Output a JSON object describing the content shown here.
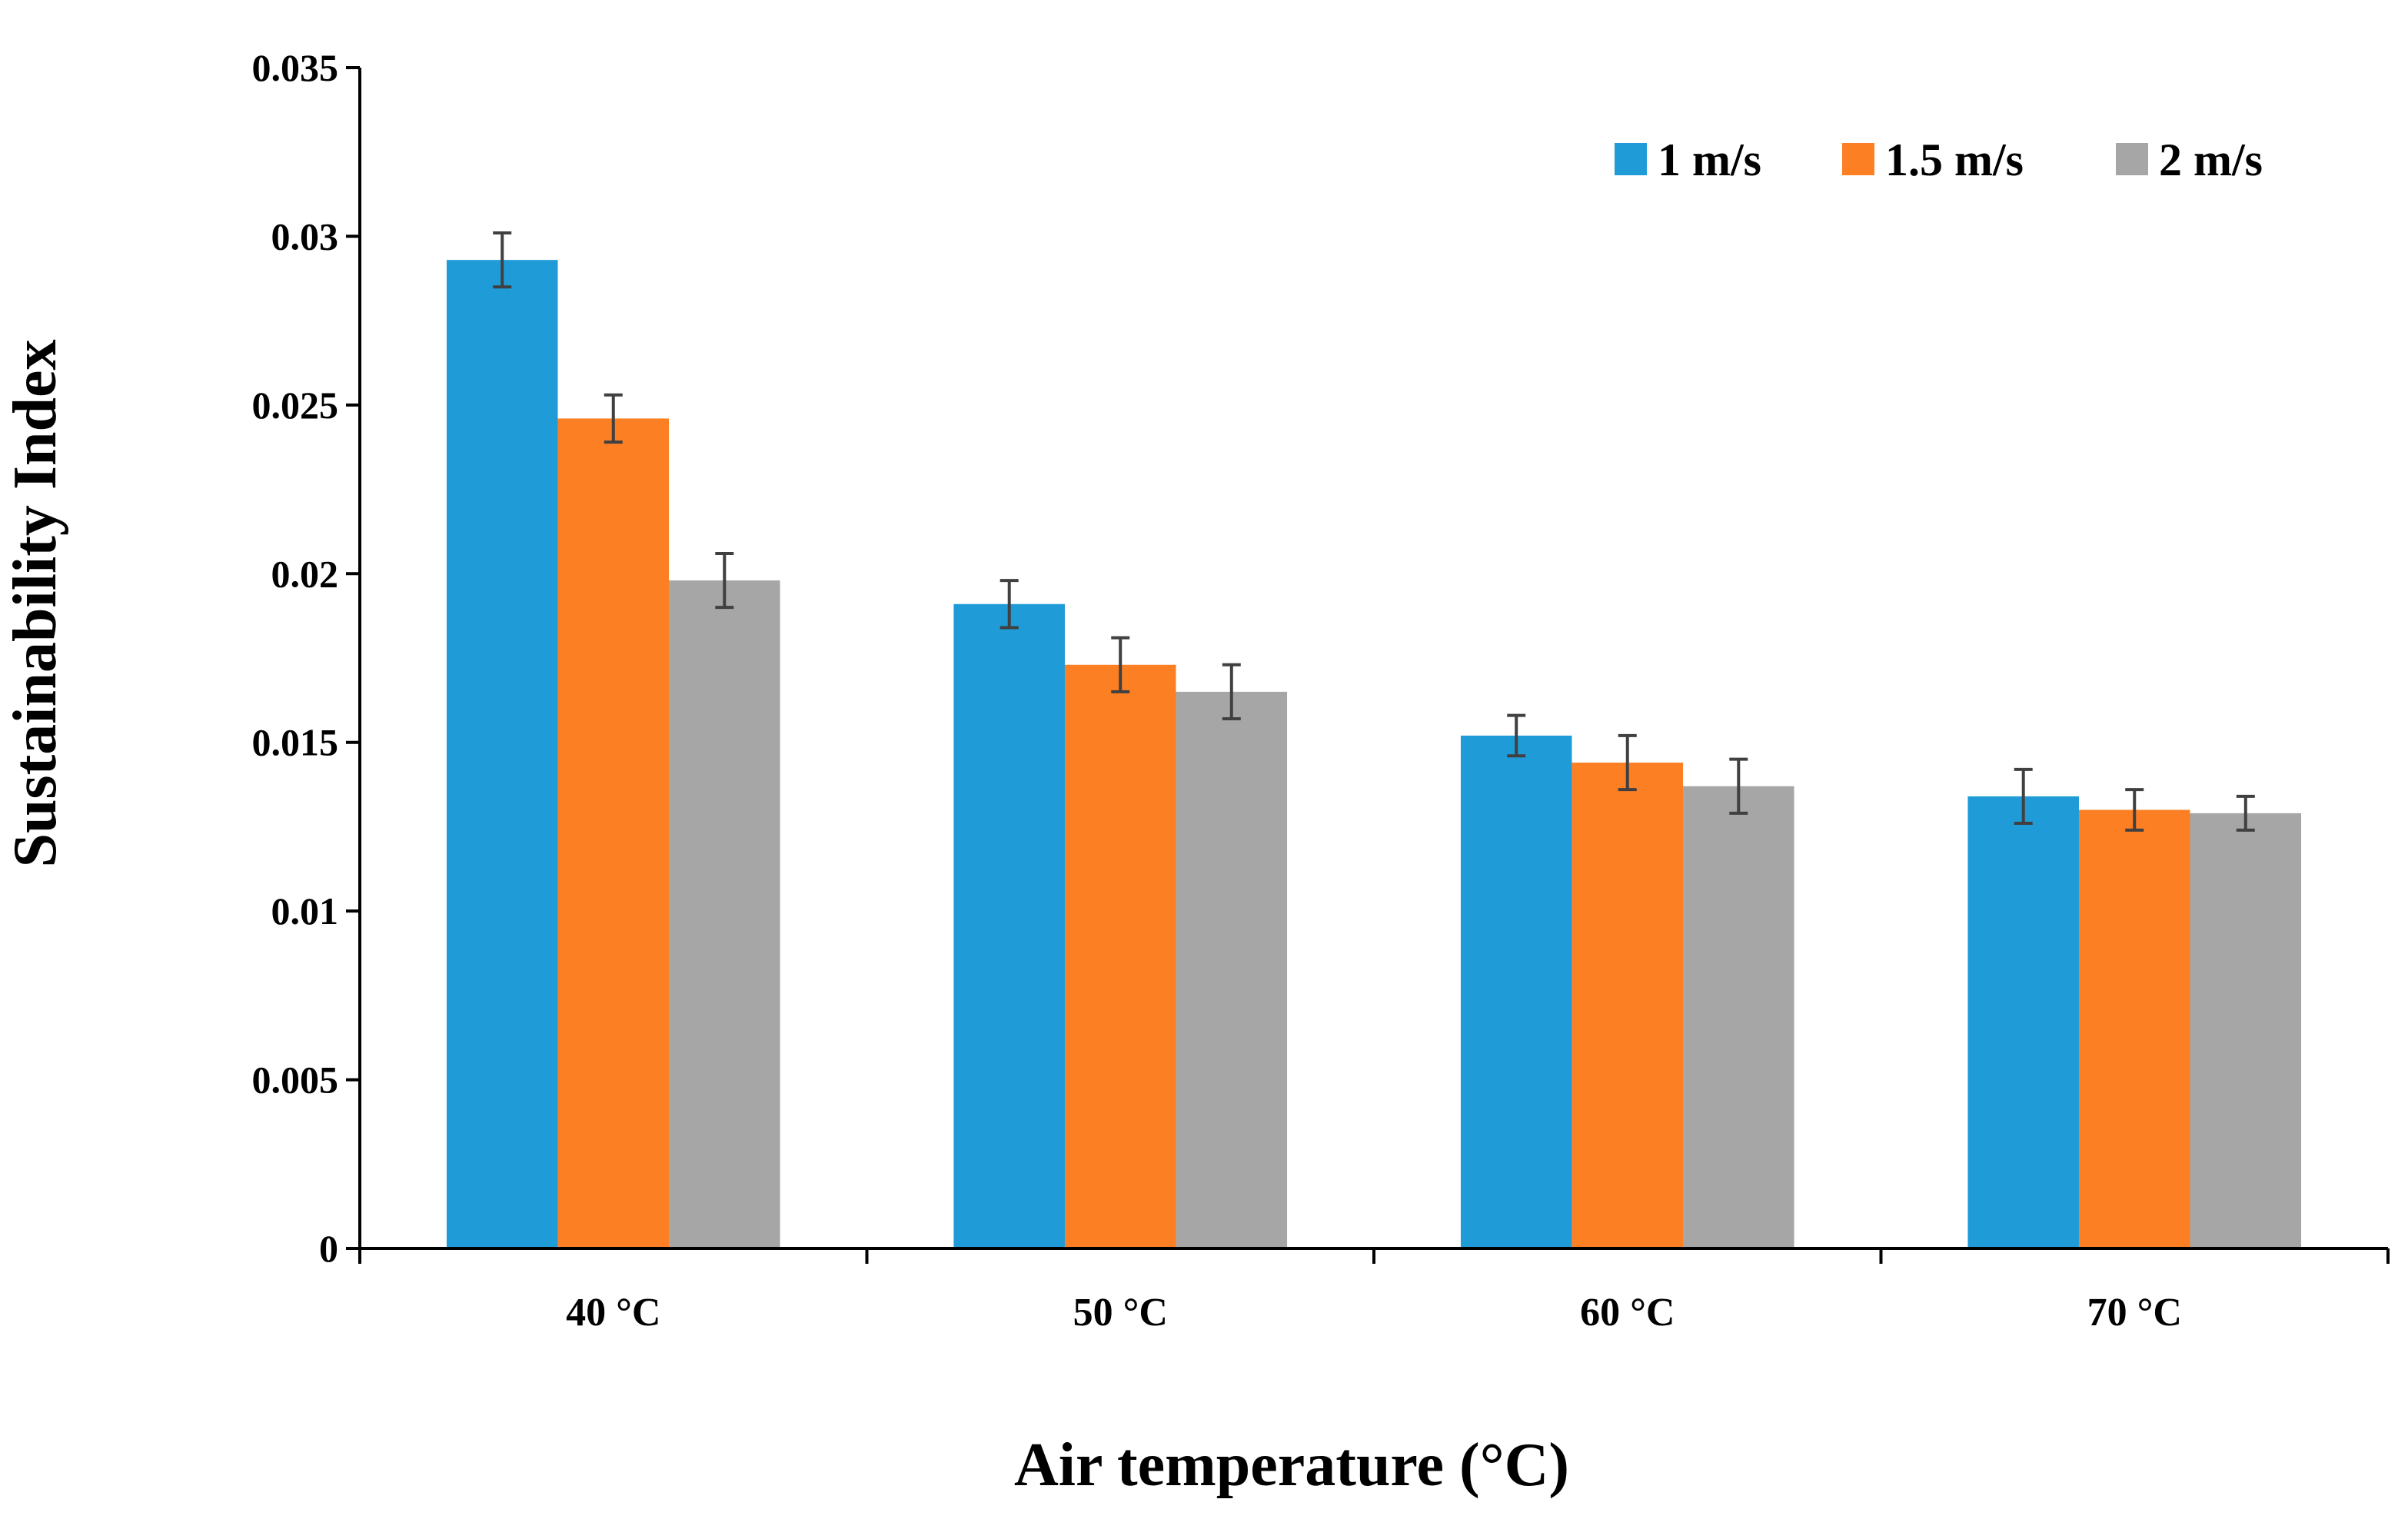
{
  "chart_data": {
    "type": "bar",
    "title": "",
    "xlabel": "Air temperature (°C)",
    "ylabel": "Sustainability Index",
    "ylim": [
      0,
      0.035
    ],
    "yticks": [
      0,
      0.005,
      0.01,
      0.015,
      0.02,
      0.025,
      0.03,
      0.035
    ],
    "ytick_labels": [
      "0",
      "0.005",
      "0.01",
      "0.015",
      "0.02",
      "0.025",
      "0.03",
      "0.035"
    ],
    "categories": [
      "40 °C",
      "50 °C",
      "60 °C",
      "70 °C"
    ],
    "grid": false,
    "legend_position": "top-right",
    "series": [
      {
        "name": "1 m/s",
        "color": "#1f9bd7",
        "values": [
          0.0293,
          0.0191,
          0.0152,
          0.0134
        ],
        "errors": [
          0.0008,
          0.0007,
          0.0006,
          0.0008
        ]
      },
      {
        "name": "1.5 m/s",
        "color": "#fd7f23",
        "values": [
          0.0246,
          0.0173,
          0.0144,
          0.013
        ],
        "errors": [
          0.0007,
          0.0008,
          0.0008,
          0.0006
        ]
      },
      {
        "name": "2 m/s",
        "color": "#a6a6a6",
        "values": [
          0.0198,
          0.0165,
          0.0137,
          0.0129
        ],
        "errors": [
          0.0008,
          0.0008,
          0.0008,
          0.0005
        ]
      }
    ],
    "errorbar_color": "#404040"
  }
}
